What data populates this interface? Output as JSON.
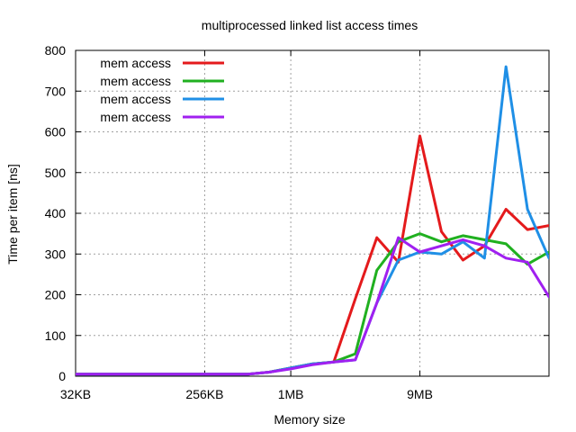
{
  "chart_data": {
    "type": "line",
    "title": "multiprocessed linked list access times",
    "xlabel": "Memory size",
    "ylabel": "Time per item [ns]",
    "ylim": [
      0,
      800
    ],
    "xlim": [
      0,
      22
    ],
    "y_ticks": [
      0,
      100,
      200,
      300,
      400,
      500,
      600,
      700,
      800
    ],
    "x_ticks": [
      {
        "value": 0,
        "label": "32KB"
      },
      {
        "value": 6,
        "label": "256KB"
      },
      {
        "value": 10,
        "label": "1MB"
      },
      {
        "value": 16,
        "label": "9MB"
      }
    ],
    "grid": true,
    "legend_position": "top-left",
    "x": [
      0,
      2,
      4,
      6,
      8,
      9,
      10,
      11,
      12,
      13,
      14,
      15,
      16,
      17,
      18,
      19,
      20,
      21,
      22
    ],
    "series": [
      {
        "name": "mem access",
        "color": "#e41a1c",
        "values": [
          5,
          5,
          5,
          5,
          5,
          10,
          20,
          30,
          35,
          190,
          340,
          280,
          590,
          355,
          285,
          320,
          410,
          360,
          370
        ]
      },
      {
        "name": "mem access",
        "color": "#20b020",
        "values": [
          5,
          5,
          5,
          5,
          5,
          10,
          20,
          30,
          35,
          55,
          260,
          330,
          350,
          330,
          345,
          335,
          325,
          275,
          305
        ]
      },
      {
        "name": "mem access",
        "color": "#1f8fe6",
        "values": [
          5,
          5,
          5,
          5,
          5,
          10,
          20,
          30,
          35,
          40,
          180,
          285,
          305,
          300,
          330,
          290,
          760,
          410,
          290
        ]
      },
      {
        "name": "mem access",
        "color": "#a020f0",
        "values": [
          5,
          5,
          5,
          5,
          5,
          10,
          18,
          28,
          35,
          40,
          180,
          340,
          305,
          320,
          335,
          320,
          290,
          280,
          195
        ]
      }
    ]
  }
}
